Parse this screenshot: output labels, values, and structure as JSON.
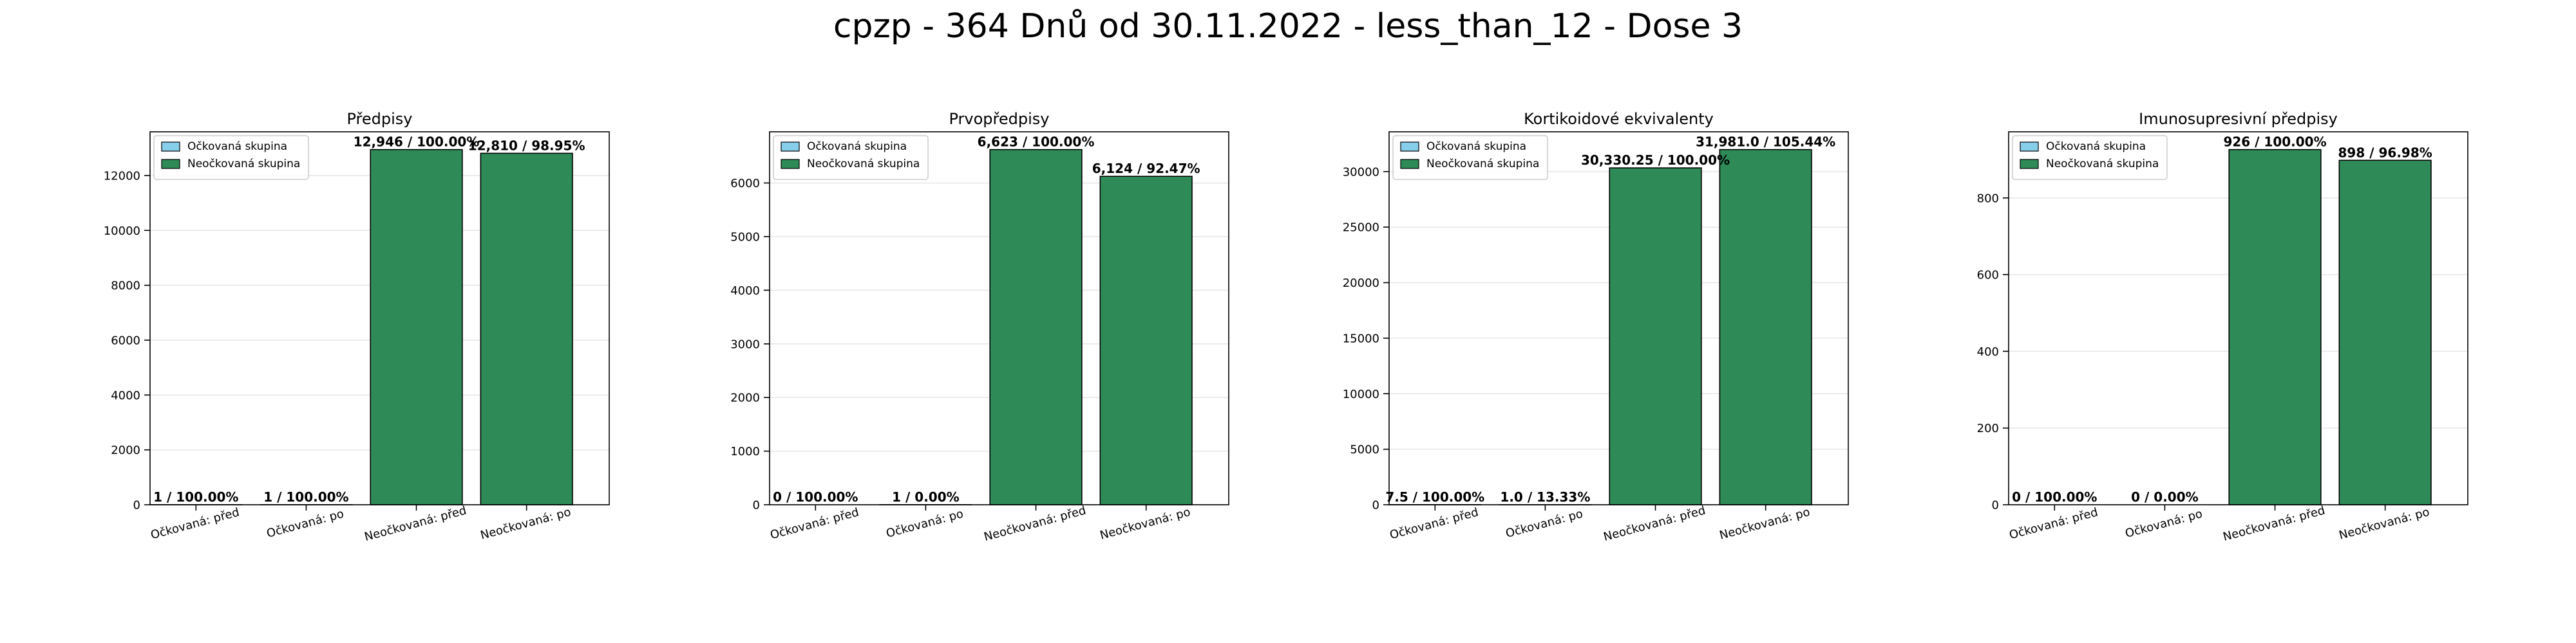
{
  "title": "cpzp - 364 Dnů od 30.11.2022 - less_than_12 - Dose 3",
  "colors": {
    "vaccinated": "#87ceeb",
    "unvaccinated": "#2e8b57",
    "edge": "#000000",
    "grid": "#e6e6e6"
  },
  "chart_data": [
    {
      "type": "bar",
      "title": "Předpisy",
      "categories": [
        "Očkovaná: před",
        "Očkovaná: po",
        "Neočkovaná: před",
        "Neočkovaná: po"
      ],
      "values": [
        1,
        1,
        12946,
        12810
      ],
      "groups": [
        "vaccinated",
        "vaccinated",
        "unvaccinated",
        "unvaccinated"
      ],
      "labels": [
        "1 / 100.00%",
        "1 / 100.00%",
        "12,946 / 100.00%",
        "12,810 / 98.95%"
      ],
      "yticks": [
        0,
        2000,
        4000,
        6000,
        8000,
        10000,
        12000
      ],
      "ylim": [
        0,
        13593
      ],
      "legend": [
        "Očkovaná skupina",
        "Neočkovaná skupina"
      ],
      "legend_loc": "upper left",
      "grid": "y"
    },
    {
      "type": "bar",
      "title": "Prvopředpisy",
      "categories": [
        "Očkovaná: před",
        "Očkovaná: po",
        "Neočkovaná: před",
        "Neočkovaná: po"
      ],
      "values": [
        0,
        1,
        6623,
        6124
      ],
      "groups": [
        "vaccinated",
        "vaccinated",
        "unvaccinated",
        "unvaccinated"
      ],
      "labels": [
        "0 / 100.00%",
        "1 / 0.00%",
        "6,623 / 100.00%",
        "6,124 / 92.47%"
      ],
      "yticks": [
        0,
        1000,
        2000,
        3000,
        4000,
        5000,
        6000
      ],
      "ylim": [
        0,
        6954
      ],
      "legend": [
        "Očkovaná skupina",
        "Neočkovaná skupina"
      ],
      "legend_loc": "upper left",
      "grid": "y"
    },
    {
      "type": "bar",
      "title": "Kortikoidové ekvivalenty",
      "categories": [
        "Očkovaná: před",
        "Očkovaná: po",
        "Neočkovaná: před",
        "Neočkovaná: po"
      ],
      "values": [
        7.5,
        1.0,
        30330.25,
        31981.0
      ],
      "groups": [
        "vaccinated",
        "vaccinated",
        "unvaccinated",
        "unvaccinated"
      ],
      "labels": [
        "7.5 / 100.00%",
        "1.0 / 13.33%",
        "30,330.25 / 100.00%",
        "31,981.0 / 105.44%"
      ],
      "yticks": [
        0,
        5000,
        10000,
        15000,
        20000,
        25000,
        30000
      ],
      "ylim": [
        0,
        33580
      ],
      "legend": [
        "Očkovaná skupina",
        "Neočkovaná skupina"
      ],
      "legend_loc": "upper left",
      "grid": "y"
    },
    {
      "type": "bar",
      "title": "Imunosupresivní předpisy",
      "categories": [
        "Očkovaná: před",
        "Očkovaná: po",
        "Neočkovaná: před",
        "Neočkovaná: po"
      ],
      "values": [
        0,
        0,
        926,
        898
      ],
      "groups": [
        "vaccinated",
        "vaccinated",
        "unvaccinated",
        "unvaccinated"
      ],
      "labels": [
        "0 / 100.00%",
        "0 / 0.00%",
        "926 / 100.00%",
        "898 / 96.98%"
      ],
      "yticks": [
        0,
        200,
        400,
        600,
        800
      ],
      "ylim": [
        0,
        972.3
      ],
      "legend": [
        "Očkovaná skupina",
        "Neočkovaná skupina"
      ],
      "legend_loc": "upper left",
      "grid": "y"
    }
  ]
}
